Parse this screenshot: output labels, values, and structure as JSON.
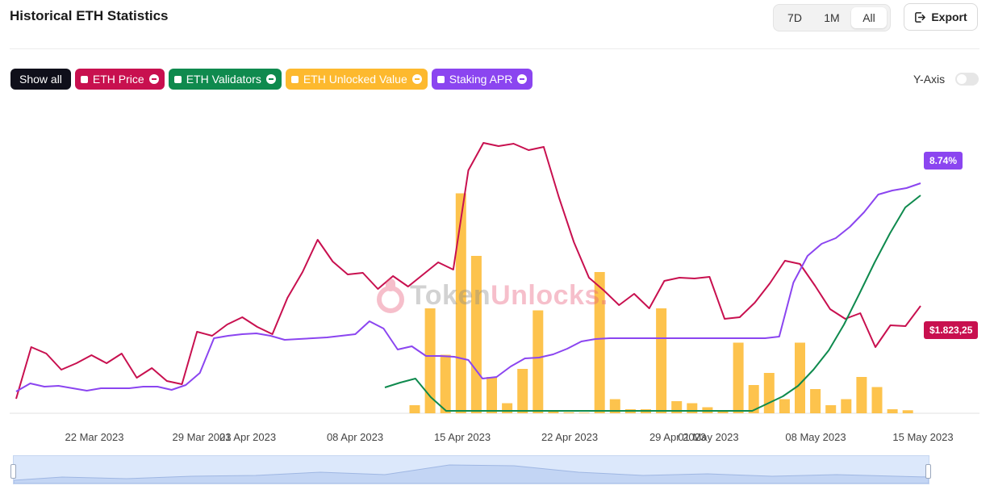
{
  "header": {
    "title": "Historical ETH Statistics",
    "ranges": [
      "7D",
      "1M",
      "All"
    ],
    "active_range": "All",
    "export_label": "Export",
    "export_icon": "export-icon"
  },
  "legend": {
    "show_all_label": "Show all",
    "items": [
      {
        "label": "ETH Price",
        "color": "#c8104f"
      },
      {
        "label": "ETH Validators",
        "color": "#0f8a4e"
      },
      {
        "label": "ETH Unlocked Value",
        "color": "#fdb92e"
      },
      {
        "label": "Staking APR",
        "color": "#8b45f0"
      }
    ],
    "yaxis_label": "Y-Axis",
    "yaxis_toggle_on": false
  },
  "watermark": {
    "text_dark": "Token",
    "text_light": "Unlocks.",
    "icon": "tokenunlocks-logo-icon"
  },
  "chart_data": {
    "type": "bar+line",
    "title": "",
    "xlabel": "",
    "ylabel": "",
    "grid": false,
    "x_tick_labels": [
      "22 Mar 2023",
      "29 Mar 2023",
      "01 Apr 2023",
      "08 Apr 2023",
      "15 Apr 2023",
      "22 Apr 2023",
      "29 Apr 2023",
      "01 May 2023",
      "08 May 2023",
      "15 May 2023"
    ],
    "bar_series": {
      "name": "ETH Unlocked Value",
      "color": "#fdb92e",
      "values": [
        4,
        52,
        29,
        109,
        78,
        18,
        5,
        22,
        51,
        1,
        0.5,
        0.3,
        70,
        7,
        2,
        2,
        52,
        6,
        5,
        3,
        1.5,
        35,
        14,
        20,
        7,
        35,
        12,
        4,
        7,
        18,
        13,
        2,
        1.5
      ]
    },
    "line_series": [
      {
        "name": "ETH Price",
        "color": "#c8104f",
        "values": [
          18,
          82,
          74,
          54,
          62,
          72,
          62,
          74,
          44,
          56,
          40,
          36,
          101,
          96,
          110,
          119,
          107,
          98,
          143,
          175,
          215,
          188,
          172,
          174,
          154,
          170,
          157,
          172,
          187,
          178,
          301,
          335,
          331,
          334,
          326,
          330,
          268,
          212,
          168,
          152,
          134,
          148,
          130,
          164,
          168,
          167,
          169,
          117,
          119,
          137,
          161,
          189,
          185,
          158,
          129,
          117,
          124,
          82,
          109,
          108,
          133
        ],
        "last_label": "$1.823,25"
      },
      {
        "name": "ETH Validators",
        "color": "#0f8a4e",
        "values": [
          32,
          38,
          43,
          20,
          3,
          3,
          3,
          3,
          3,
          3,
          3,
          3,
          3,
          3,
          3,
          3,
          3,
          3,
          3,
          3,
          3,
          3,
          3,
          3,
          3,
          12,
          21,
          34,
          54,
          78,
          110,
          148,
          187,
          223,
          255,
          270
        ]
      },
      {
        "name": "Staking APR",
        "color": "#8b45f0",
        "values": [
          27,
          37,
          33,
          34,
          31,
          28,
          31,
          31,
          31,
          33,
          33,
          29,
          35,
          50,
          93,
          96,
          98,
          99,
          96,
          91,
          92,
          93,
          94,
          96,
          98,
          114,
          105,
          79,
          83,
          71,
          71,
          70,
          66,
          43,
          45,
          58,
          68,
          69,
          73,
          80,
          89,
          92,
          93,
          93,
          93,
          93,
          93,
          93,
          93,
          93,
          93,
          93,
          93,
          93,
          95,
          162,
          195,
          210,
          217,
          231,
          249,
          271,
          276,
          279,
          285
        ],
        "last_label": "8.74%"
      }
    ]
  }
}
